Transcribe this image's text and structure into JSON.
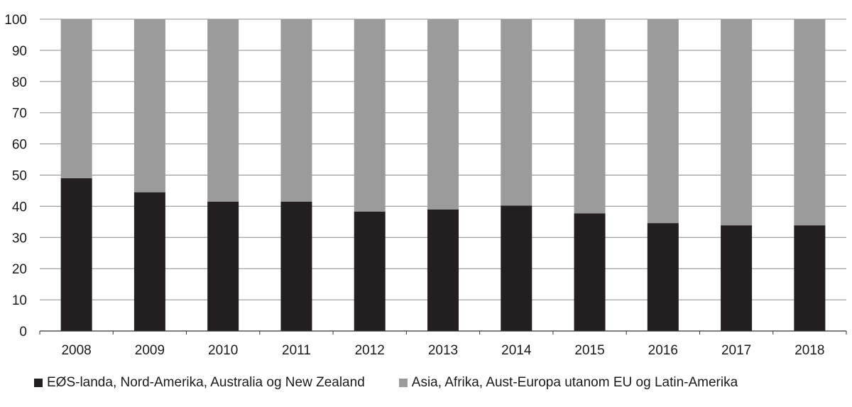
{
  "chart_data": {
    "type": "bar",
    "stacked": true,
    "categories": [
      "2008",
      "2009",
      "2010",
      "2011",
      "2012",
      "2013",
      "2014",
      "2015",
      "2016",
      "2017",
      "2018"
    ],
    "series": [
      {
        "name": "EØS-landa, Nord-Amerika, Australia og New Zealand",
        "color": "#231f20",
        "values": [
          49,
          44.5,
          41.5,
          41.5,
          38.3,
          39,
          40.2,
          37.7,
          34.6,
          33.9,
          33.9
        ]
      },
      {
        "name": "Asia, Afrika, Aust-Europa utanom EU og Latin-Amerika",
        "color": "#9b9b9b",
        "values": [
          51,
          55.5,
          58.5,
          58.5,
          61.7,
          61,
          59.8,
          62.3,
          65.4,
          66.1,
          66.1
        ]
      }
    ],
    "yticks": [
      "0",
      "10",
      "20",
      "30",
      "40",
      "50",
      "60",
      "70",
      "80",
      "90",
      "100"
    ],
    "ylim": [
      0,
      100
    ],
    "grid": true,
    "legend": "bottom"
  }
}
